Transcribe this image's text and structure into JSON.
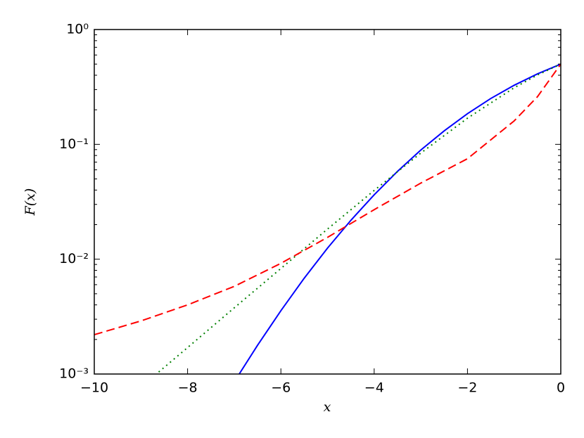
{
  "chart_data": {
    "type": "line",
    "xlabel": "x",
    "ylabel": "F(x)",
    "log_y": true,
    "xlim": [
      -10,
      0
    ],
    "ylim": [
      0.001,
      1
    ],
    "xticks": [
      {
        "value": -10,
        "label": "−10"
      },
      {
        "value": -8,
        "label": "−8"
      },
      {
        "value": -6,
        "label": "−6"
      },
      {
        "value": -4,
        "label": "−4"
      },
      {
        "value": -2,
        "label": "−2"
      },
      0
    ],
    "yticks": [
      {
        "value": 0.001,
        "label": "10⁻³"
      },
      {
        "value": 0.01,
        "label": "10⁻²"
      },
      {
        "value": 0.1,
        "label": "10⁻¹"
      },
      {
        "value": 1,
        "label": "10⁰"
      }
    ],
    "series": [
      {
        "color": "#0000ff",
        "style": "solid",
        "x": [
          -6.9,
          -6.5,
          -6,
          -5.5,
          -5,
          -4.5,
          -4,
          -3.5,
          -3,
          -2.5,
          -2,
          -1.5,
          -1,
          -0.5,
          0
        ],
        "values": [
          0.00099,
          0.00178,
          0.00356,
          0.00683,
          0.0125,
          0.0218,
          0.0364,
          0.0582,
          0.0893,
          0.131,
          0.185,
          0.251,
          0.327,
          0.411,
          0.5
        ]
      },
      {
        "color": "#008000",
        "style": "dotted",
        "x": [
          -8.7,
          -8,
          -7,
          -6,
          -5,
          -4,
          -3,
          -2,
          -1,
          -0.5,
          0
        ],
        "values": [
          0.000976,
          0.0017,
          0.00377,
          0.0083,
          0.0183,
          0.0397,
          0.084,
          0.169,
          0.311,
          0.402,
          0.5
        ]
      },
      {
        "color": "#ff0000",
        "style": "dashed",
        "x": [
          -10,
          -9,
          -8,
          -7,
          -6,
          -5,
          -4,
          -3,
          -2,
          -1,
          -0.5,
          0
        ],
        "values": [
          0.0022,
          0.0029,
          0.004,
          0.0058,
          0.0092,
          0.0155,
          0.027,
          0.046,
          0.075,
          0.16,
          0.26,
          0.5
        ]
      }
    ]
  }
}
